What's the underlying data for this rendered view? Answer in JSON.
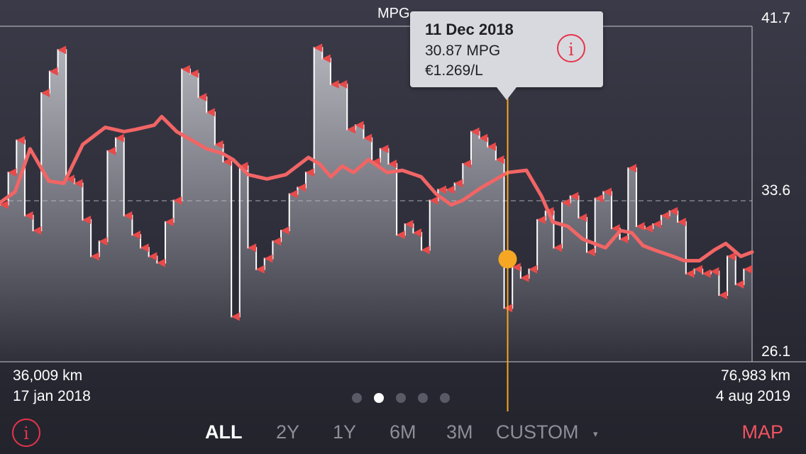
{
  "header": {
    "metric_label": "MPG",
    "metric_caret": "▾"
  },
  "y_axis": {
    "top": "41.7",
    "mid": "33.6",
    "bottom": "26.1"
  },
  "tooltip": {
    "date": "11 Dec 2018",
    "mpg": "30.87 MPG",
    "price": "€1.269/L",
    "info_icon": "i"
  },
  "range_start": {
    "distance": "36,009 km",
    "date": "17 jan 2018"
  },
  "range_end": {
    "distance": "76,983 km",
    "date": "4 aug 2019"
  },
  "pager": {
    "count": 5,
    "active": 1
  },
  "bottom_bar": {
    "info_icon": "i",
    "ranges": [
      "ALL",
      "2Y",
      "1Y",
      "6M",
      "3M",
      "CUSTOM"
    ],
    "custom_caret": "▾",
    "active_range": "ALL",
    "map_label": "MAP"
  },
  "colors": {
    "accent": "#f1535f",
    "cursor": "#f5a623",
    "marker": "#e84a4a"
  },
  "chart_data": {
    "type": "area",
    "ylim": [
      26.1,
      41.7
    ],
    "reference_line": 33.6,
    "x_label_start": "36,009 km",
    "x_label_end": "76,983 km",
    "fillups": [
      33.4,
      34.9,
      36.4,
      32.9,
      32.2,
      38.6,
      39.6,
      40.6,
      34.6,
      34.4,
      32.7,
      31.0,
      31.7,
      35.9,
      36.5,
      32.9,
      32.0,
      31.4,
      31.0,
      30.7,
      32.6,
      33.6,
      39.7,
      39.5,
      38.4,
      37.7,
      36.2,
      35.4,
      28.2,
      35.2,
      31.4,
      30.4,
      30.9,
      31.7,
      32.2,
      33.9,
      34.2,
      34.9,
      40.7,
      40.2,
      39.0,
      39.0,
      36.9,
      37.1,
      36.5,
      35.4,
      36.0,
      35.3,
      32.0,
      32.5,
      32.1,
      31.3,
      33.6,
      34.1,
      34.1,
      34.4,
      35.3,
      36.8,
      36.5,
      36.1,
      35.5,
      28.6,
      30.5,
      30.0,
      30.4,
      32.7,
      33.1,
      31.4,
      33.5,
      33.8,
      32.8,
      31.2,
      33.7,
      34.0,
      32.3,
      31.8,
      35.1,
      32.4,
      32.3,
      32.5,
      32.9,
      33.1,
      32.6,
      30.2,
      30.4,
      30.2,
      30.3,
      29.2,
      31.0,
      29.7,
      30.4
    ],
    "moving_average": [
      [
        0,
        33.5
      ],
      [
        0.02,
        34.0
      ],
      [
        0.04,
        36.0
      ],
      [
        0.065,
        34.5
      ],
      [
        0.085,
        34.4
      ],
      [
        0.11,
        36.2
      ],
      [
        0.14,
        37.0
      ],
      [
        0.165,
        36.8
      ],
      [
        0.18,
        36.9
      ],
      [
        0.205,
        37.1
      ],
      [
        0.215,
        37.5
      ],
      [
        0.235,
        36.8
      ],
      [
        0.255,
        36.4
      ],
      [
        0.275,
        36.0
      ],
      [
        0.295,
        35.8
      ],
      [
        0.31,
        35.5
      ],
      [
        0.33,
        34.8
      ],
      [
        0.355,
        34.6
      ],
      [
        0.38,
        34.8
      ],
      [
        0.41,
        35.6
      ],
      [
        0.425,
        35.3
      ],
      [
        0.44,
        34.7
      ],
      [
        0.455,
        35.2
      ],
      [
        0.47,
        34.9
      ],
      [
        0.49,
        35.5
      ],
      [
        0.515,
        34.9
      ],
      [
        0.535,
        35.0
      ],
      [
        0.56,
        34.7
      ],
      [
        0.58,
        33.9
      ],
      [
        0.6,
        33.4
      ],
      [
        0.615,
        33.6
      ],
      [
        0.64,
        34.2
      ],
      [
        0.665,
        34.7
      ],
      [
        0.675,
        34.9
      ],
      [
        0.7,
        35.0
      ],
      [
        0.72,
        33.8
      ],
      [
        0.735,
        32.6
      ],
      [
        0.755,
        32.4
      ],
      [
        0.775,
        31.8
      ],
      [
        0.79,
        31.6
      ],
      [
        0.805,
        31.4
      ],
      [
        0.825,
        32.2
      ],
      [
        0.84,
        32.1
      ],
      [
        0.855,
        31.5
      ],
      [
        0.87,
        31.3
      ],
      [
        0.895,
        31.0
      ],
      [
        0.91,
        30.8
      ],
      [
        0.93,
        30.8
      ],
      [
        0.95,
        31.3
      ],
      [
        0.965,
        31.6
      ],
      [
        0.985,
        31.0
      ],
      [
        1,
        31.2
      ]
    ],
    "selected": {
      "date": "11 Dec 2018",
      "mpg": 30.87,
      "x_fraction": 0.675
    }
  }
}
